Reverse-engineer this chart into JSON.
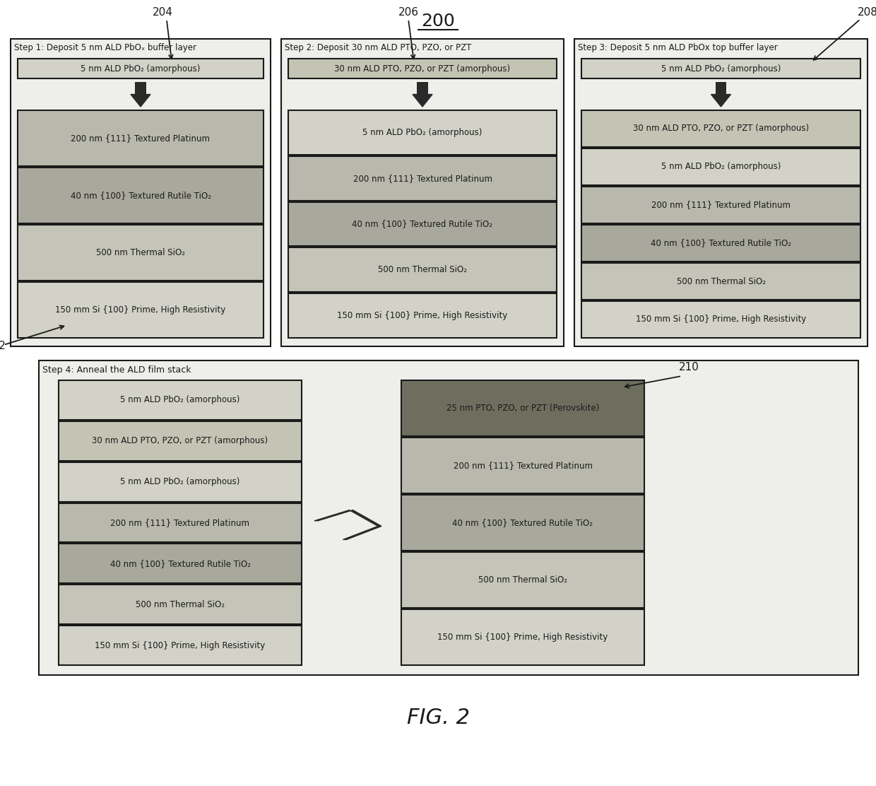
{
  "title": "200",
  "fig_label": "FIG. 2",
  "step1": {
    "label": "204",
    "title": "Step 1: Deposit 5 nm ALD PbOₓ buffer layer",
    "top_layer": {
      "text": "5 nm ALD PbO₂ (amorphous)",
      "color": "#d2d2c8"
    },
    "stack": [
      {
        "text": "200 nm {111} Textured Platinum",
        "color": "#b8b8ac"
      },
      {
        "text": "40 nm {100} Textured Rutile TiO₂",
        "color": "#a8a89c"
      },
      {
        "text": "500 nm Thermal SiO₂",
        "color": "#c4c4b8"
      },
      {
        "text": "150 mm Si {100} Prime, High Resistivity",
        "color": "#d2d2c8"
      }
    ]
  },
  "step2": {
    "label": "206",
    "title": "Step 2: Deposit 30 nm ALD PTO, PZO, or PZT",
    "top_layer": {
      "text": "30 nm ALD PTO, PZO, or PZT (amorphous)",
      "color": "#c4c4b4"
    },
    "stack": [
      {
        "text": "5 nm ALD PbO₂ (amorphous)",
        "color": "#d2d2c8"
      },
      {
        "text": "200 nm {111} Textured Platinum",
        "color": "#b8b8ac"
      },
      {
        "text": "40 nm {100} Textured Rutile TiO₂",
        "color": "#a8a89c"
      },
      {
        "text": "500 nm Thermal SiO₂",
        "color": "#c4c4b8"
      },
      {
        "text": "150 mm Si {100} Prime, High Resistivity",
        "color": "#d2d2c8"
      }
    ]
  },
  "step3": {
    "label": "208",
    "title": "Step 3: Deposit 5 nm ALD PbOx top buffer layer",
    "top_layer": {
      "text": "5 nm ALD PbO₂ (amorphous)",
      "color": "#d2d2c8"
    },
    "stack": [
      {
        "text": "30 nm ALD PTO, PZO, or PZT (amorphous)",
        "color": "#c4c4b4"
      },
      {
        "text": "5 nm ALD PbO₂ (amorphous)",
        "color": "#d2d2c8"
      },
      {
        "text": "200 nm {111} Textured Platinum",
        "color": "#b8b8ac"
      },
      {
        "text": "40 nm {100} Textured Rutile TiO₂",
        "color": "#a8a89c"
      },
      {
        "text": "500 nm Thermal SiO₂",
        "color": "#c4c4b8"
      },
      {
        "text": "150 mm Si {100} Prime, High Resistivity",
        "color": "#d2d2c8"
      }
    ]
  },
  "step4": {
    "title": "Step 4: Anneal the ALD film stack",
    "stack_left": [
      {
        "text": "5 nm ALD PbO₂ (amorphous)",
        "color": "#d2d2c8"
      },
      {
        "text": "30 nm ALD PTO, PZO, or PZT (amorphous)",
        "color": "#c4c4b4"
      },
      {
        "text": "5 nm ALD PbO₂ (amorphous)",
        "color": "#d2d2c8"
      },
      {
        "text": "200 nm {111} Textured Platinum",
        "color": "#b8b8ac"
      },
      {
        "text": "40 nm {100} Textured Rutile TiO₂",
        "color": "#a8a89c"
      },
      {
        "text": "500 nm Thermal SiO₂",
        "color": "#c4c4b8"
      },
      {
        "text": "150 mm Si {100} Prime, High Resistivity",
        "color": "#d2d2c8"
      }
    ],
    "stack_right_label": "210",
    "stack_right": [
      {
        "text": "25 nm PTO, PZO, or PZT (Perovskite)",
        "color": "#6e6e5e"
      },
      {
        "text": "200 nm {111} Textured Platinum",
        "color": "#b8b8ac"
      },
      {
        "text": "40 nm {100} Textured Rutile TiO₂",
        "color": "#a8a89c"
      },
      {
        "text": "500 nm Thermal SiO₂",
        "color": "#c4c4b8"
      },
      {
        "text": "150 mm Si {100} Prime, High Resistivity",
        "color": "#d2d2c8"
      }
    ]
  }
}
